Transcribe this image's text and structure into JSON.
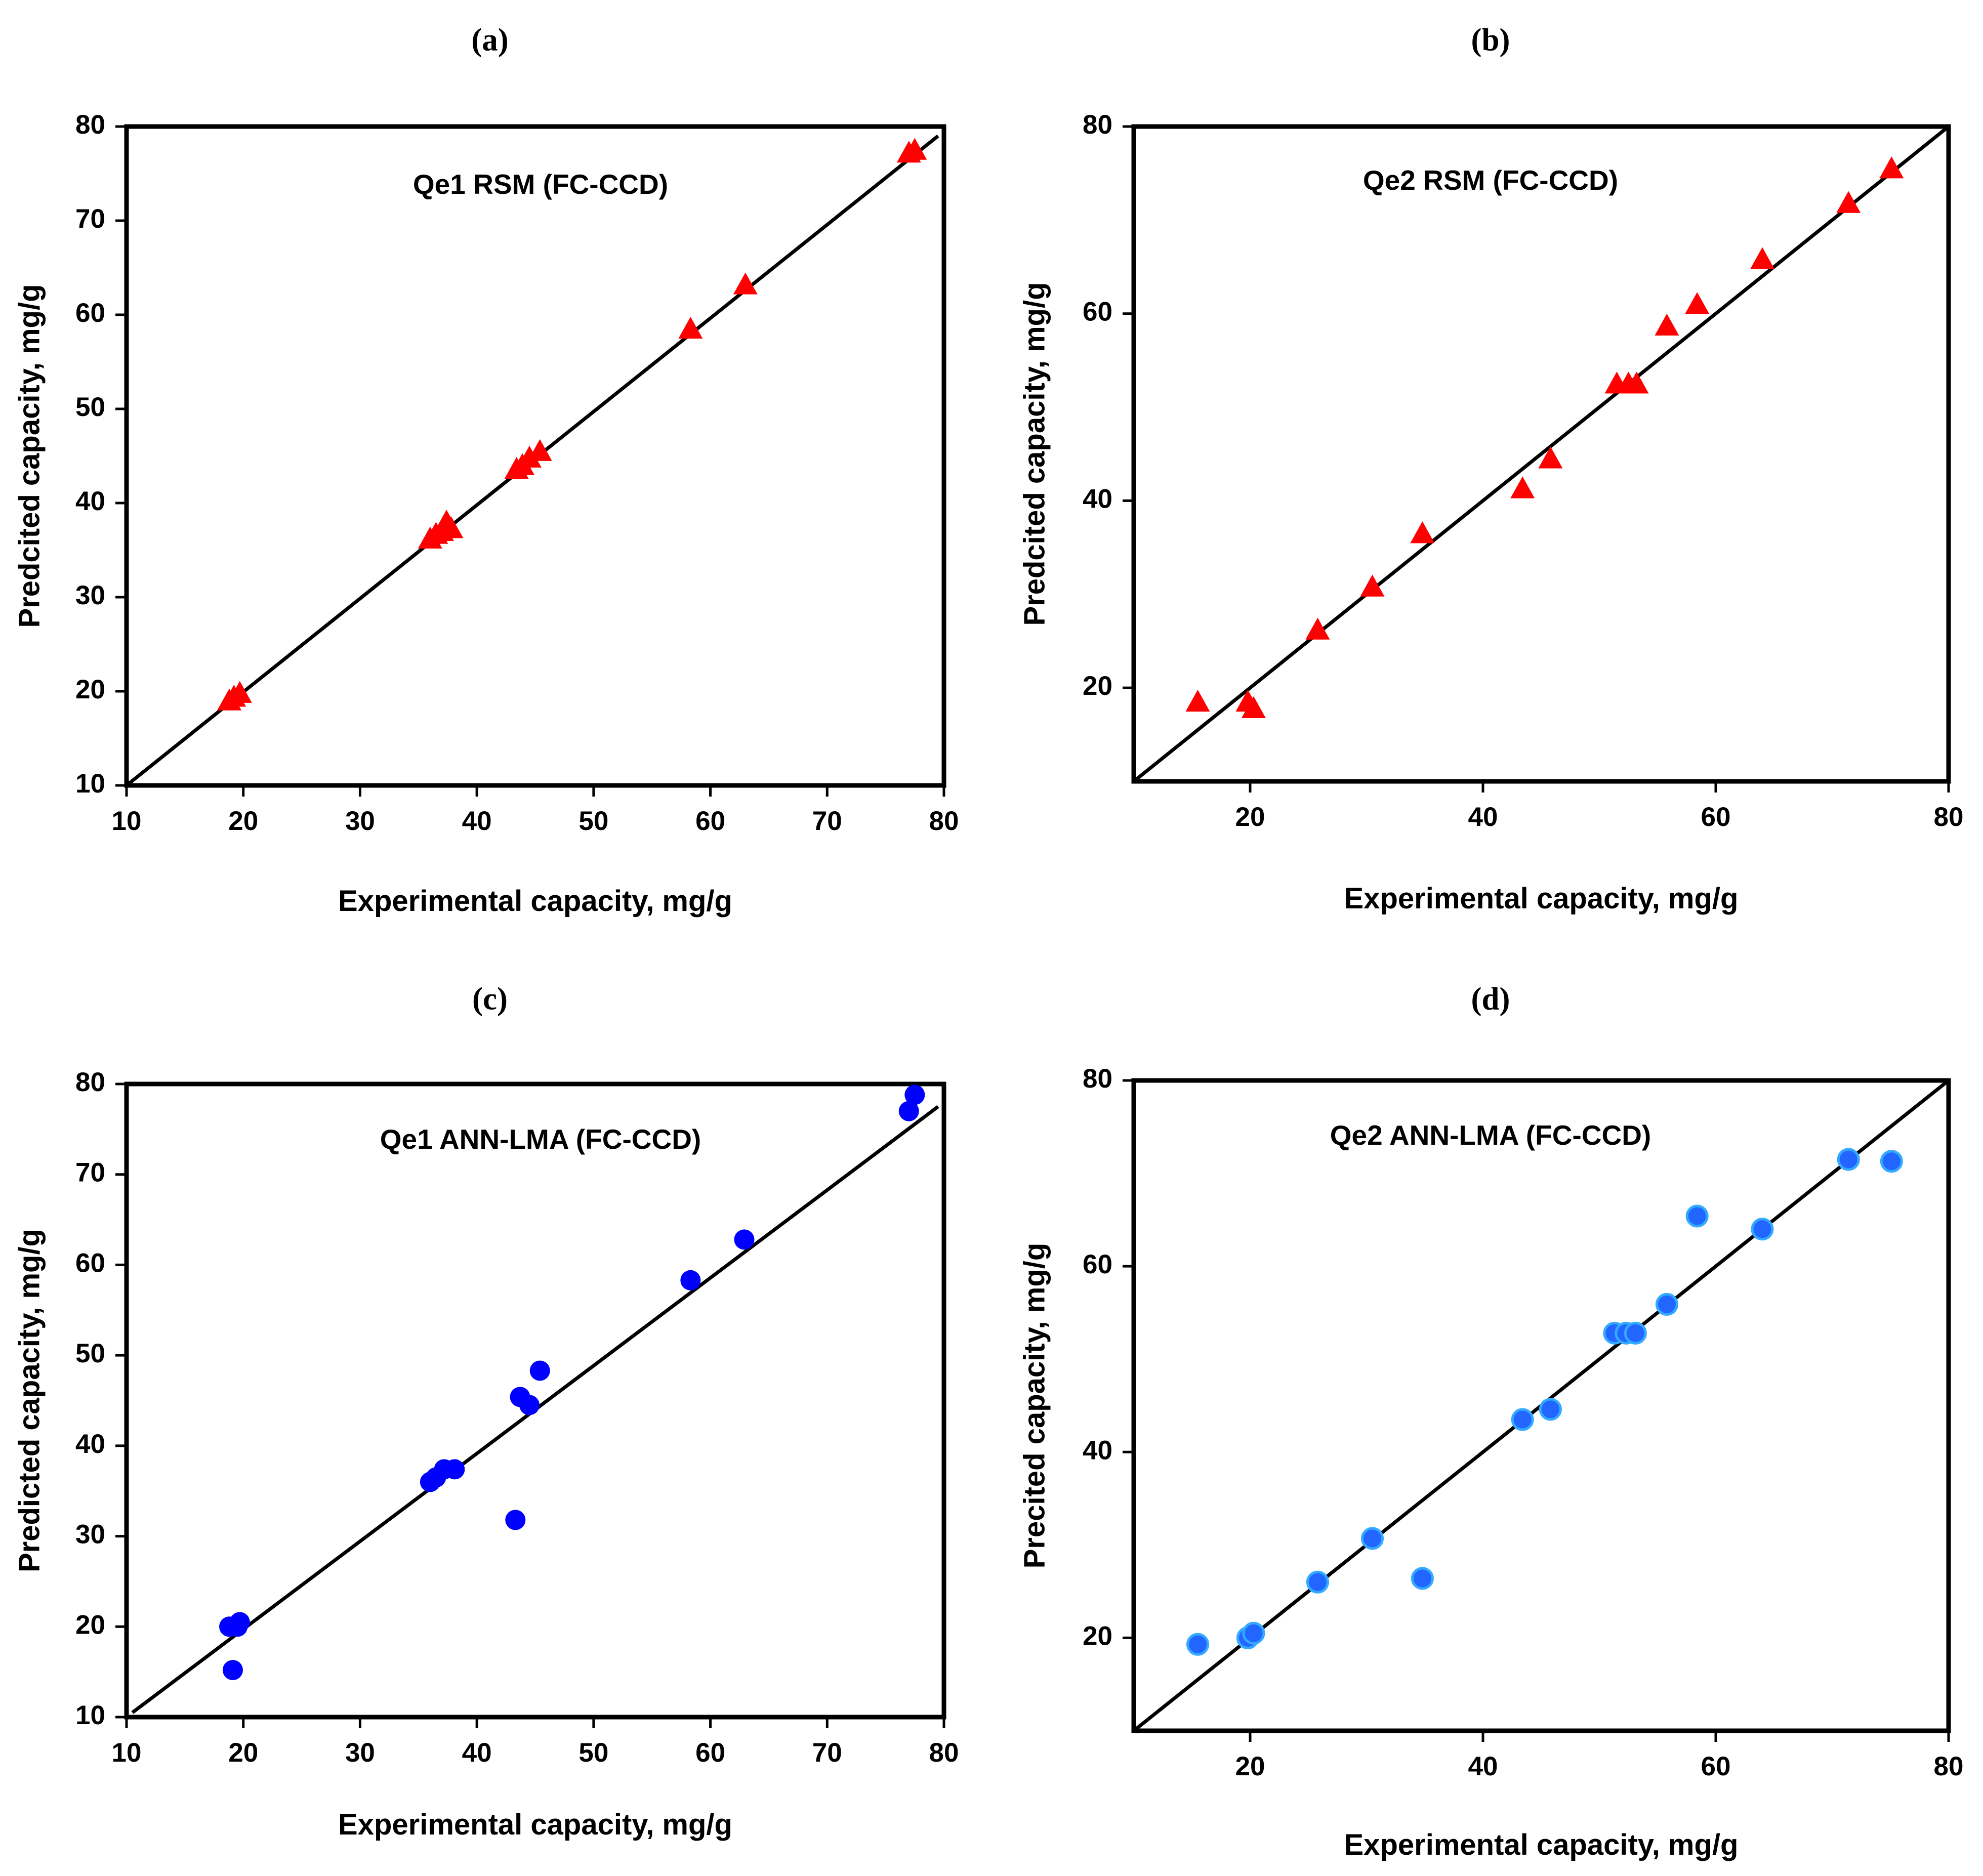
{
  "chart_data": [
    {
      "panel": "(a)",
      "type": "scatter",
      "title": "Qe1 RSM (FC-CCD)",
      "xlabel": "Experimental capacity, mg/g",
      "ylabel": "Predcited capacity, mg/g",
      "xlim": [
        10,
        80
      ],
      "ylim": [
        10,
        80
      ],
      "xticks": [
        10,
        20,
        30,
        40,
        50,
        60,
        70,
        80
      ],
      "yticks": [
        10,
        20,
        30,
        40,
        50,
        60,
        70,
        80
      ],
      "marker": "triangle",
      "color": "#ff0000",
      "fit_line": [
        [
          10,
          10
        ],
        [
          79.5,
          79
        ]
      ],
      "points": [
        [
          18.8,
          19.0
        ],
        [
          19.2,
          19.4
        ],
        [
          19.7,
          19.8
        ],
        [
          36.0,
          36.2
        ],
        [
          36.5,
          36.7
        ],
        [
          37.0,
          37.0
        ],
        [
          37.4,
          38.0
        ],
        [
          37.8,
          37.3
        ],
        [
          43.4,
          43.6
        ],
        [
          43.9,
          44.0
        ],
        [
          44.5,
          44.8
        ],
        [
          45.4,
          45.5
        ],
        [
          58.3,
          58.5
        ],
        [
          63.0,
          63.2
        ],
        [
          77.0,
          77.2
        ],
        [
          77.5,
          77.5
        ]
      ]
    },
    {
      "panel": "(b)",
      "type": "scatter",
      "title": "Qe2 RSM (FC-CCD)",
      "xlabel": "Experimental capacity, mg/g",
      "ylabel": "Predcited capacity, mg/g",
      "xlim": [
        10,
        80
      ],
      "ylim": [
        10,
        80
      ],
      "xticks": [
        20,
        40,
        60,
        80
      ],
      "yticks": [
        20,
        40,
        60,
        80
      ],
      "marker": "triangle",
      "color": "#ff0000",
      "fit_line": [
        [
          10,
          10
        ],
        [
          80,
          80
        ]
      ],
      "points": [
        [
          15.5,
          18.5
        ],
        [
          19.8,
          18.5
        ],
        [
          20.3,
          17.8
        ],
        [
          25.8,
          26.2
        ],
        [
          30.5,
          30.8
        ],
        [
          34.8,
          36.5
        ],
        [
          43.4,
          41.3
        ],
        [
          45.8,
          44.5
        ],
        [
          51.5,
          52.5
        ],
        [
          52.5,
          52.5
        ],
        [
          53.2,
          52.5
        ],
        [
          55.8,
          58.7
        ],
        [
          58.4,
          61.0
        ],
        [
          64.0,
          65.8
        ],
        [
          71.4,
          71.8
        ],
        [
          75.1,
          75.5
        ]
      ]
    },
    {
      "panel": "(c)",
      "type": "scatter",
      "title": "Qe1 ANN-LMA (FC-CCD)",
      "xlabel": "Experimental capacity, mg/g",
      "ylabel": "Predicted capacity, mg/g",
      "xlim": [
        10,
        80
      ],
      "ylim": [
        10,
        80
      ],
      "xticks": [
        10,
        20,
        30,
        40,
        50,
        60,
        70,
        80
      ],
      "yticks": [
        10,
        20,
        30,
        40,
        50,
        60,
        70,
        80
      ],
      "marker": "circle",
      "color": "#0000ff",
      "fit_line": [
        [
          10.5,
          10.5
        ],
        [
          79.5,
          77.5
        ]
      ],
      "points": [
        [
          18.8,
          20.0
        ],
        [
          19.5,
          20.0
        ],
        [
          19.7,
          20.5
        ],
        [
          19.1,
          15.2
        ],
        [
          36.0,
          36.0
        ],
        [
          36.5,
          36.5
        ],
        [
          37.2,
          37.4
        ],
        [
          38.1,
          37.4
        ],
        [
          43.3,
          31.8
        ],
        [
          43.7,
          45.4
        ],
        [
          44.5,
          44.5
        ],
        [
          45.4,
          48.3
        ],
        [
          58.3,
          58.3
        ],
        [
          62.9,
          62.8
        ],
        [
          77.0,
          77.0
        ],
        [
          77.5,
          78.8
        ]
      ]
    },
    {
      "panel": "(d)",
      "type": "scatter",
      "title": "Qe2 ANN-LMA (FC-CCD)",
      "xlabel": "Experimental capacity, mg/g",
      "ylabel": "Precited capacity, mg/g",
      "xlim": [
        10,
        80
      ],
      "ylim": [
        10,
        80
      ],
      "xticks": [
        20,
        40,
        60,
        80
      ],
      "yticks": [
        20,
        40,
        60,
        80
      ],
      "marker": "circle",
      "color": "#2266ff",
      "fit_line": [
        [
          10,
          10
        ],
        [
          80,
          80
        ]
      ],
      "points": [
        [
          15.5,
          19.3
        ],
        [
          19.8,
          20.0
        ],
        [
          20.3,
          20.5
        ],
        [
          25.8,
          26.0
        ],
        [
          30.5,
          30.7
        ],
        [
          34.8,
          26.4
        ],
        [
          43.4,
          43.5
        ],
        [
          45.8,
          44.6
        ],
        [
          51.3,
          52.8
        ],
        [
          52.3,
          52.8
        ],
        [
          53.1,
          52.8
        ],
        [
          55.8,
          55.9
        ],
        [
          58.4,
          65.4
        ],
        [
          64.0,
          64.0
        ],
        [
          71.4,
          71.5
        ],
        [
          75.1,
          71.3
        ]
      ]
    }
  ]
}
